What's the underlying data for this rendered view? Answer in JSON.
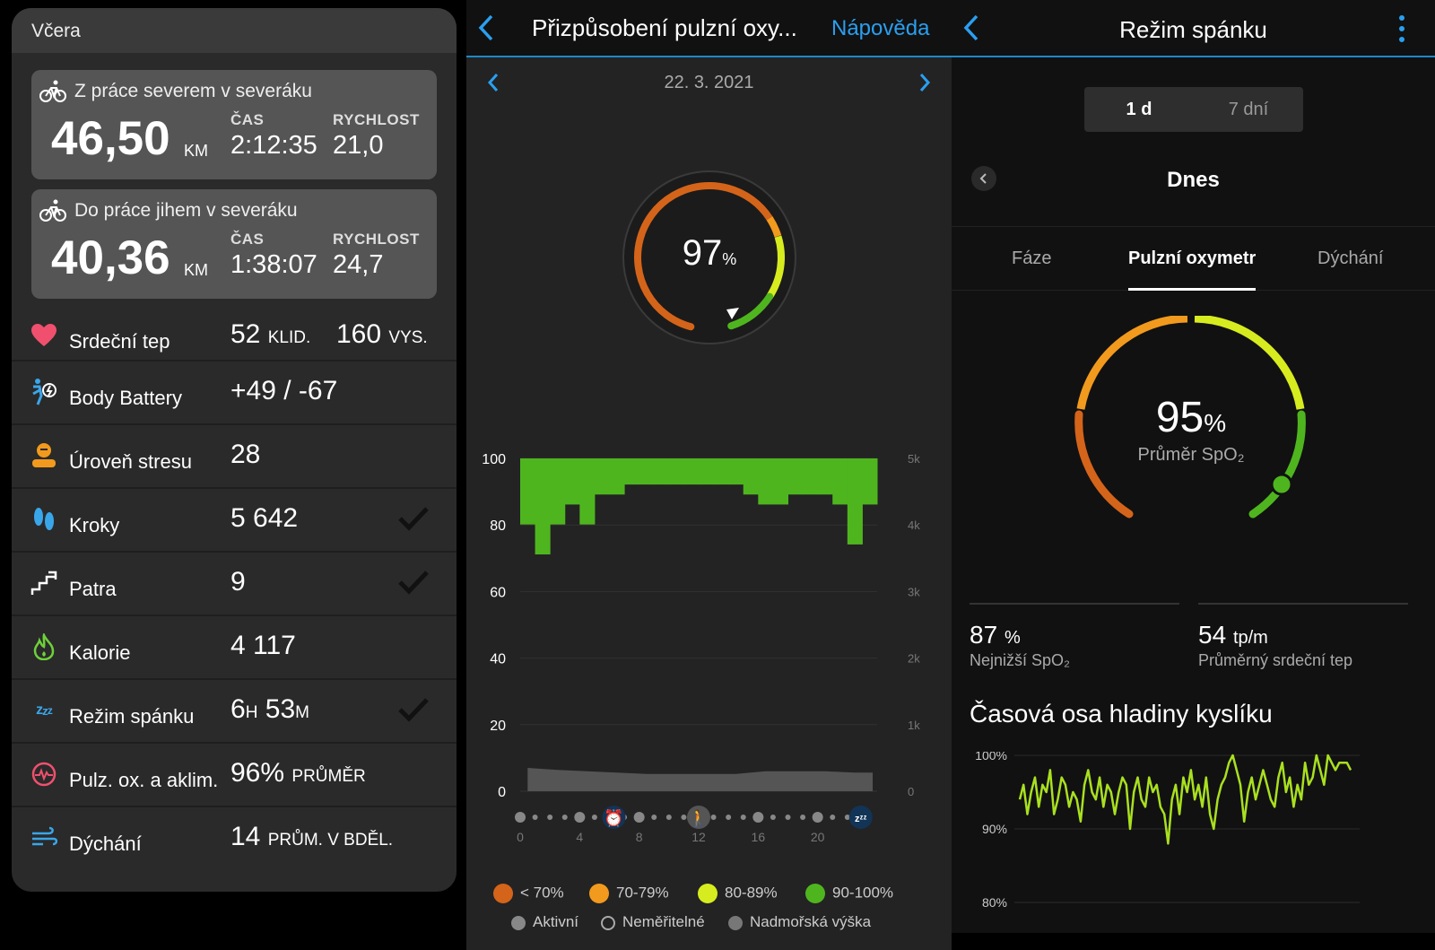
{
  "summary": {
    "header": "Včera",
    "activities": [
      {
        "title": "Z práce severem v severáku",
        "distance": "46,50",
        "distance_unit": "KM",
        "time_label": "ČAS",
        "time": "2:12:35",
        "speed_label": "RYCHLOST",
        "speed": "21,0"
      },
      {
        "title": "Do práce jihem v severáku",
        "distance": "40,36",
        "distance_unit": "KM",
        "time_label": "ČAS",
        "time": "1:38:07",
        "speed_label": "RYCHLOST",
        "speed": "24,7"
      }
    ],
    "rows": [
      {
        "name": "Srdeční tep",
        "value": "52",
        "value_unit": "KLID.",
        "value2": "160",
        "value2_unit": "VYS.",
        "icon": "heart-icon",
        "checked": false
      },
      {
        "name": "Body Battery",
        "value": "+49 / -67",
        "icon": "body-battery-icon",
        "checked": false
      },
      {
        "name": "Úroveň stresu",
        "value": "28",
        "icon": "stress-icon",
        "checked": false
      },
      {
        "name": "Kroky",
        "value": "5 642",
        "icon": "steps-icon",
        "checked": true
      },
      {
        "name": "Patra",
        "value": "9",
        "icon": "stairs-icon",
        "checked": true
      },
      {
        "name": "Kalorie",
        "value": "4 117",
        "icon": "flame-icon",
        "checked": false
      },
      {
        "name": "Režim spánku",
        "value_h": "6",
        "unit_h": "H",
        "value_m": "53",
        "unit_m": "M",
        "icon": "sleep-icon",
        "checked": true
      },
      {
        "name": "Pulz. ox. a aklim.",
        "value": "96%",
        "value_unit": "PRŮMĚR",
        "icon": "pulse-ox-icon",
        "checked": false
      },
      {
        "name": "Dýchání",
        "value": "14",
        "value_unit": "PRŮM. V BDĚL.",
        "icon": "respiration-icon",
        "checked": false
      }
    ]
  },
  "pulse_ox": {
    "title": "Přizpůsobení pulzní oxy...",
    "help": "Nápověda",
    "date": "22. 3. 2021",
    "gauge_value": "97",
    "gauge_unit": "%",
    "y_left_ticks": [
      "100",
      "80",
      "60",
      "40",
      "20",
      "0"
    ],
    "y_right_ticks": [
      "5k",
      "4k",
      "3k",
      "2k",
      "1k",
      "0"
    ],
    "x_ticks": [
      "0",
      "4",
      "8",
      "12",
      "16",
      "20"
    ],
    "legend": [
      {
        "label": "< 70%",
        "color": "#d4641a"
      },
      {
        "label": "70-79%",
        "color": "#f29a1d"
      },
      {
        "label": "80-89%",
        "color": "#d7ec1f"
      },
      {
        "label": "90-100%",
        "color": "#4fb51f"
      }
    ],
    "legend2": [
      {
        "label": "Aktivní",
        "color": "#888888"
      },
      {
        "label": "Neměřitelné",
        "color": "none"
      },
      {
        "label": "Nadmořská výška",
        "color": "#777777"
      }
    ]
  },
  "sleep": {
    "title": "Režim spánku",
    "seg_1d": "1 d",
    "seg_7d": "7 dní",
    "day": "Dnes",
    "tabs": [
      "Fáze",
      "Pulzní oxymetr",
      "Dýchání"
    ],
    "avg_value": "95",
    "avg_unit": "%",
    "avg_label": "Průměr SpO₂",
    "low_value": "87",
    "low_unit": "%",
    "low_label": "Nejnižší SpO₂",
    "hr_value": "54",
    "hr_unit": "tp/m",
    "hr_label": "Průměrný srdeční tep",
    "timeline_title": "Časová osa hladiny kyslíku",
    "y_ticks": [
      "100%",
      "90%",
      "80%"
    ]
  },
  "chart_data": [
    {
      "type": "bar",
      "x_ticks": [
        0,
        4,
        8,
        12,
        16,
        20
      ],
      "ylim_left": [
        0,
        100
      ],
      "ylim_right": [
        0,
        5000
      ],
      "y_left_ticks": [
        100,
        80,
        60,
        40,
        20,
        0
      ],
      "y_right_ticks": [
        "5k",
        "4k",
        "3k",
        "2k",
        "1k",
        "0"
      ],
      "series": [
        {
          "x": [
            0,
            1,
            2,
            3,
            4,
            5,
            6,
            7,
            8,
            9,
            10,
            11,
            12,
            13,
            14,
            15,
            16,
            17,
            18,
            19,
            20,
            21,
            22,
            23
          ],
          "values": [
            95,
            92,
            95,
            97,
            95,
            98,
            98,
            99,
            99,
            99,
            99,
            99,
            99,
            99,
            99,
            98,
            97,
            97,
            98,
            98,
            98,
            97,
            93,
            97
          ]
        },
        {
          "x": [
            0,
            2,
            4,
            6,
            8,
            10,
            12,
            14,
            16,
            18,
            20,
            22,
            24
          ],
          "values": [
            350,
            320,
            300,
            280,
            260,
            260,
            260,
            260,
            300,
            300,
            300,
            280,
            280
          ]
        }
      ]
    },
    {
      "type": "line",
      "ylim": [
        80,
        100
      ],
      "y_ticks": [
        "100%",
        "90%",
        "80%"
      ],
      "series": [
        {
          "values": [
            94,
            96,
            92,
            95,
            97,
            93,
            96,
            95,
            98,
            92,
            94,
            97,
            96,
            93,
            95,
            94,
            91,
            96,
            98,
            95,
            94,
            97,
            93,
            96,
            95,
            92,
            95,
            97,
            96,
            90,
            95,
            97,
            94,
            93,
            97,
            95,
            96,
            93,
            92,
            88,
            94,
            96,
            92,
            97,
            95,
            98,
            94,
            96,
            93,
            97,
            92,
            90,
            94,
            96,
            97,
            99,
            100,
            98,
            96,
            91,
            95,
            97,
            94,
            96,
            98,
            96,
            94,
            93,
            97,
            99,
            95,
            97,
            93,
            96,
            94,
            99,
            96,
            97,
            100,
            98,
            96,
            100,
            99,
            98,
            99,
            99,
            99,
            98
          ]
        }
      ]
    }
  ]
}
